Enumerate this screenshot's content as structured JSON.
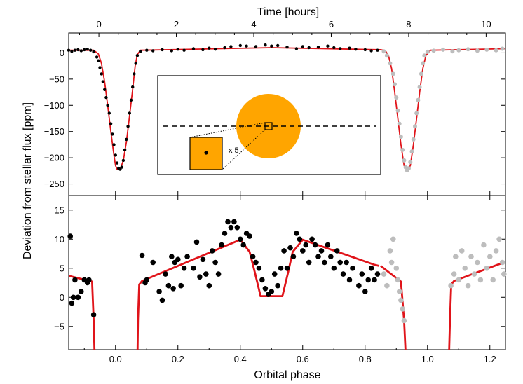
{
  "chart_data": {
    "type": "scatter",
    "top_axis": {
      "label": "Time [hours]",
      "ticks": [
        0,
        2,
        4,
        6,
        8,
        10
      ],
      "range": [
        -0.78,
        10.5
      ]
    },
    "bottom_axis": {
      "label": "Orbital phase",
      "ticks": [
        0.0,
        0.2,
        0.4,
        0.6,
        0.8,
        1.0,
        1.2
      ],
      "range": [
        -0.15,
        1.25
      ]
    },
    "y_label": "Deviation from stellar flux [ppm]",
    "upper_panel": {
      "ylim": [
        -272,
        38
      ],
      "yticks": [
        0,
        -50,
        -100,
        -150,
        -200,
        -250
      ],
      "model": [
        [
          -0.15,
          5
        ],
        [
          -0.07,
          5
        ],
        [
          -0.055,
          -2
        ],
        [
          -0.045,
          -20
        ],
        [
          -0.035,
          -55
        ],
        [
          -0.025,
          -100
        ],
        [
          -0.015,
          -150
        ],
        [
          -0.005,
          -195
        ],
        [
          0.0,
          -215
        ],
        [
          0.005,
          -222
        ],
        [
          0.015,
          -222
        ],
        [
          0.025,
          -205
        ],
        [
          0.035,
          -170
        ],
        [
          0.045,
          -120
        ],
        [
          0.055,
          -70
        ],
        [
          0.063,
          -25
        ],
        [
          0.07,
          -3
        ],
        [
          0.08,
          5
        ],
        [
          0.5,
          10
        ],
        [
          0.845,
          6
        ],
        [
          0.85,
          6
        ],
        [
          0.865,
          4
        ],
        [
          0.875,
          -5
        ],
        [
          0.885,
          -30
        ],
        [
          0.895,
          -75
        ],
        [
          0.905,
          -125
        ],
        [
          0.915,
          -175
        ],
        [
          0.925,
          -215
        ],
        [
          0.935,
          -224
        ],
        [
          0.945,
          -215
        ],
        [
          0.955,
          -175
        ],
        [
          0.965,
          -125
        ],
        [
          0.975,
          -75
        ],
        [
          0.985,
          -30
        ],
        [
          0.995,
          -5
        ],
        [
          1.01,
          5
        ],
        [
          1.25,
          8
        ]
      ],
      "black_points": [
        [
          -0.15,
          5
        ],
        [
          -0.14,
          3
        ],
        [
          -0.13,
          5
        ],
        [
          -0.12,
          6
        ],
        [
          -0.11,
          4
        ],
        [
          -0.1,
          6
        ],
        [
          -0.09,
          7
        ],
        [
          -0.08,
          5
        ],
        [
          -0.07,
          2
        ],
        [
          -0.06,
          -8
        ],
        [
          -0.055,
          -15
        ],
        [
          -0.05,
          -28
        ],
        [
          -0.045,
          -40
        ],
        [
          -0.04,
          -55
        ],
        [
          -0.035,
          -70
        ],
        [
          -0.03,
          -85
        ],
        [
          -0.025,
          -100
        ],
        [
          -0.02,
          -115
        ],
        [
          -0.015,
          -135
        ],
        [
          -0.01,
          -155
        ],
        [
          -0.005,
          -175
        ],
        [
          0.0,
          -195
        ],
        [
          0.005,
          -210
        ],
        [
          0.01,
          -220
        ],
        [
          0.015,
          -222
        ],
        [
          0.02,
          -218
        ],
        [
          0.025,
          -205
        ],
        [
          0.03,
          -185
        ],
        [
          0.035,
          -165
        ],
        [
          0.04,
          -140
        ],
        [
          0.045,
          -115
        ],
        [
          0.05,
          -90
        ],
        [
          0.055,
          -65
        ],
        [
          0.06,
          -40
        ],
        [
          0.065,
          -20
        ],
        [
          0.07,
          -5
        ],
        [
          0.08,
          3
        ],
        [
          0.1,
          5
        ],
        [
          0.12,
          4
        ],
        [
          0.15,
          6
        ],
        [
          0.18,
          4
        ],
        [
          0.2,
          7
        ],
        [
          0.22,
          5
        ],
        [
          0.25,
          8
        ],
        [
          0.28,
          6
        ],
        [
          0.3,
          9
        ],
        [
          0.32,
          7
        ],
        [
          0.35,
          10
        ],
        [
          0.37,
          12
        ],
        [
          0.4,
          14
        ],
        [
          0.42,
          13
        ],
        [
          0.45,
          12
        ],
        [
          0.48,
          15
        ],
        [
          0.5,
          13
        ],
        [
          0.52,
          14
        ],
        [
          0.55,
          11
        ],
        [
          0.58,
          8
        ],
        [
          0.6,
          12
        ],
        [
          0.62,
          10
        ],
        [
          0.65,
          11
        ],
        [
          0.68,
          13
        ],
        [
          0.7,
          10
        ],
        [
          0.72,
          8
        ],
        [
          0.75,
          9
        ],
        [
          0.77,
          7
        ],
        [
          0.8,
          6
        ],
        [
          0.82,
          4
        ],
        [
          0.84,
          5
        ]
      ],
      "gray_points": [
        [
          0.86,
          3
        ],
        [
          0.87,
          -5
        ],
        [
          0.88,
          -20
        ],
        [
          0.89,
          -40
        ],
        [
          0.895,
          -60
        ],
        [
          0.9,
          -85
        ],
        [
          0.905,
          -110
        ],
        [
          0.91,
          -135
        ],
        [
          0.915,
          -160
        ],
        [
          0.92,
          -185
        ],
        [
          0.925,
          -205
        ],
        [
          0.93,
          -218
        ],
        [
          0.935,
          -224
        ],
        [
          0.94,
          -220
        ],
        [
          0.945,
          -208
        ],
        [
          0.95,
          -188
        ],
        [
          0.955,
          -165
        ],
        [
          0.96,
          -140
        ],
        [
          0.965,
          -115
        ],
        [
          0.97,
          -90
        ],
        [
          0.975,
          -65
        ],
        [
          0.98,
          -40
        ],
        [
          0.985,
          -20
        ],
        [
          0.99,
          -5
        ],
        [
          1.0,
          2
        ],
        [
          1.02,
          4
        ],
        [
          1.05,
          6
        ],
        [
          1.08,
          3
        ],
        [
          1.1,
          5
        ],
        [
          1.13,
          7
        ],
        [
          1.16,
          4
        ],
        [
          1.19,
          6
        ],
        [
          1.22,
          5
        ],
        [
          1.24,
          8
        ]
      ]
    },
    "lower_panel": {
      "ylim": [
        -9,
        17.5
      ],
      "yticks": [
        15,
        10,
        5,
        0,
        -5
      ],
      "model_segments": [
        [
          [
            -0.15,
            3.7
          ],
          [
            -0.075,
            2.7
          ],
          [
            -0.07,
            -4
          ],
          [
            -0.066,
            -12
          ]
        ],
        [
          [
            0.07,
            -12
          ],
          [
            0.072,
            -4
          ],
          [
            0.076,
            2.2
          ],
          [
            0.085,
            2.8
          ],
          [
            0.4,
            9.9
          ],
          [
            0.43,
            7.8
          ],
          [
            0.448,
            4
          ],
          [
            0.465,
            0.2
          ],
          [
            0.5,
            0.2
          ],
          [
            0.535,
            0.2
          ],
          [
            0.552,
            4
          ],
          [
            0.568,
            7.8
          ],
          [
            0.6,
            9.9
          ],
          [
            0.83,
            5.6
          ],
          [
            0.845,
            5.4
          ]
        ],
        [
          [
            0.85,
            5.4
          ],
          [
            0.915,
            2.7
          ],
          [
            0.925,
            -4
          ],
          [
            0.932,
            -12
          ]
        ],
        [
          [
            1.068,
            -12
          ],
          [
            1.072,
            -4
          ],
          [
            1.076,
            2.2
          ],
          [
            1.085,
            2.8
          ],
          [
            1.25,
            6.1
          ]
        ]
      ],
      "black_points": [
        [
          -0.145,
          10.5
        ],
        [
          -0.14,
          -1
        ],
        [
          -0.135,
          0
        ],
        [
          -0.13,
          3
        ],
        [
          -0.12,
          0
        ],
        [
          -0.11,
          1
        ],
        [
          -0.1,
          3
        ],
        [
          -0.09,
          2.5
        ],
        [
          -0.085,
          3
        ],
        [
          -0.07,
          -3
        ],
        [
          0.085,
          7.2
        ],
        [
          0.095,
          2.5
        ],
        [
          0.1,
          3
        ],
        [
          0.12,
          6
        ],
        [
          0.14,
          1
        ],
        [
          0.15,
          -0.5
        ],
        [
          0.16,
          4
        ],
        [
          0.17,
          2
        ],
        [
          0.18,
          7
        ],
        [
          0.185,
          1.5
        ],
        [
          0.19,
          6
        ],
        [
          0.2,
          6.5
        ],
        [
          0.21,
          2
        ],
        [
          0.22,
          5
        ],
        [
          0.23,
          7
        ],
        [
          0.25,
          5
        ],
        [
          0.26,
          9.5
        ],
        [
          0.27,
          3.5
        ],
        [
          0.28,
          6.5
        ],
        [
          0.29,
          4
        ],
        [
          0.3,
          2
        ],
        [
          0.31,
          8
        ],
        [
          0.32,
          6
        ],
        [
          0.33,
          4
        ],
        [
          0.34,
          9
        ],
        [
          0.35,
          11
        ],
        [
          0.36,
          13
        ],
        [
          0.37,
          12
        ],
        [
          0.38,
          13
        ],
        [
          0.39,
          12
        ],
        [
          0.4,
          10
        ],
        [
          0.41,
          9
        ],
        [
          0.42,
          11
        ],
        [
          0.43,
          10.5
        ],
        [
          0.44,
          7
        ],
        [
          0.45,
          6
        ],
        [
          0.46,
          5
        ],
        [
          0.47,
          3
        ],
        [
          0.48,
          1.5
        ],
        [
          0.49,
          0.5
        ],
        [
          0.5,
          1
        ],
        [
          0.51,
          4
        ],
        [
          0.52,
          2
        ],
        [
          0.53,
          5
        ],
        [
          0.54,
          8
        ],
        [
          0.55,
          5
        ],
        [
          0.56,
          8.5
        ],
        [
          0.57,
          7
        ],
        [
          0.58,
          11
        ],
        [
          0.59,
          10
        ],
        [
          0.6,
          8
        ],
        [
          0.61,
          9
        ],
        [
          0.62,
          6
        ],
        [
          0.63,
          10
        ],
        [
          0.64,
          9
        ],
        [
          0.65,
          7
        ],
        [
          0.66,
          8
        ],
        [
          0.67,
          6
        ],
        [
          0.68,
          9
        ],
        [
          0.69,
          7
        ],
        [
          0.7,
          5
        ],
        [
          0.71,
          8
        ],
        [
          0.72,
          6
        ],
        [
          0.73,
          4
        ],
        [
          0.74,
          6
        ],
        [
          0.75,
          3
        ],
        [
          0.76,
          5
        ],
        [
          0.78,
          2
        ],
        [
          0.79,
          4
        ],
        [
          0.8,
          1
        ],
        [
          0.81,
          3
        ],
        [
          0.82,
          5
        ],
        [
          0.83,
          3
        ],
        [
          0.84,
          4
        ]
      ],
      "gray_points": [
        [
          0.86,
          4
        ],
        [
          0.87,
          2
        ],
        [
          0.88,
          8
        ],
        [
          0.885,
          6
        ],
        [
          0.89,
          10
        ],
        [
          0.9,
          5
        ],
        [
          0.905,
          3
        ],
        [
          0.91,
          1
        ],
        [
          0.915,
          -0.5
        ],
        [
          0.92,
          -2
        ],
        [
          0.925,
          -4
        ],
        [
          1.075,
          2
        ],
        [
          1.085,
          4
        ],
        [
          1.09,
          7
        ],
        [
          1.1,
          3
        ],
        [
          1.11,
          8
        ],
        [
          1.12,
          5
        ],
        [
          1.13,
          2
        ],
        [
          1.14,
          7
        ],
        [
          1.15,
          4
        ],
        [
          1.16,
          6
        ],
        [
          1.17,
          3
        ],
        [
          1.18,
          9
        ],
        [
          1.19,
          5
        ],
        [
          1.2,
          7
        ],
        [
          1.21,
          3
        ],
        [
          1.22,
          8
        ],
        [
          1.23,
          10
        ],
        [
          1.24,
          6
        ],
        [
          1.245,
          4
        ]
      ]
    },
    "inset": {
      "zoom_label": "x 5"
    }
  }
}
